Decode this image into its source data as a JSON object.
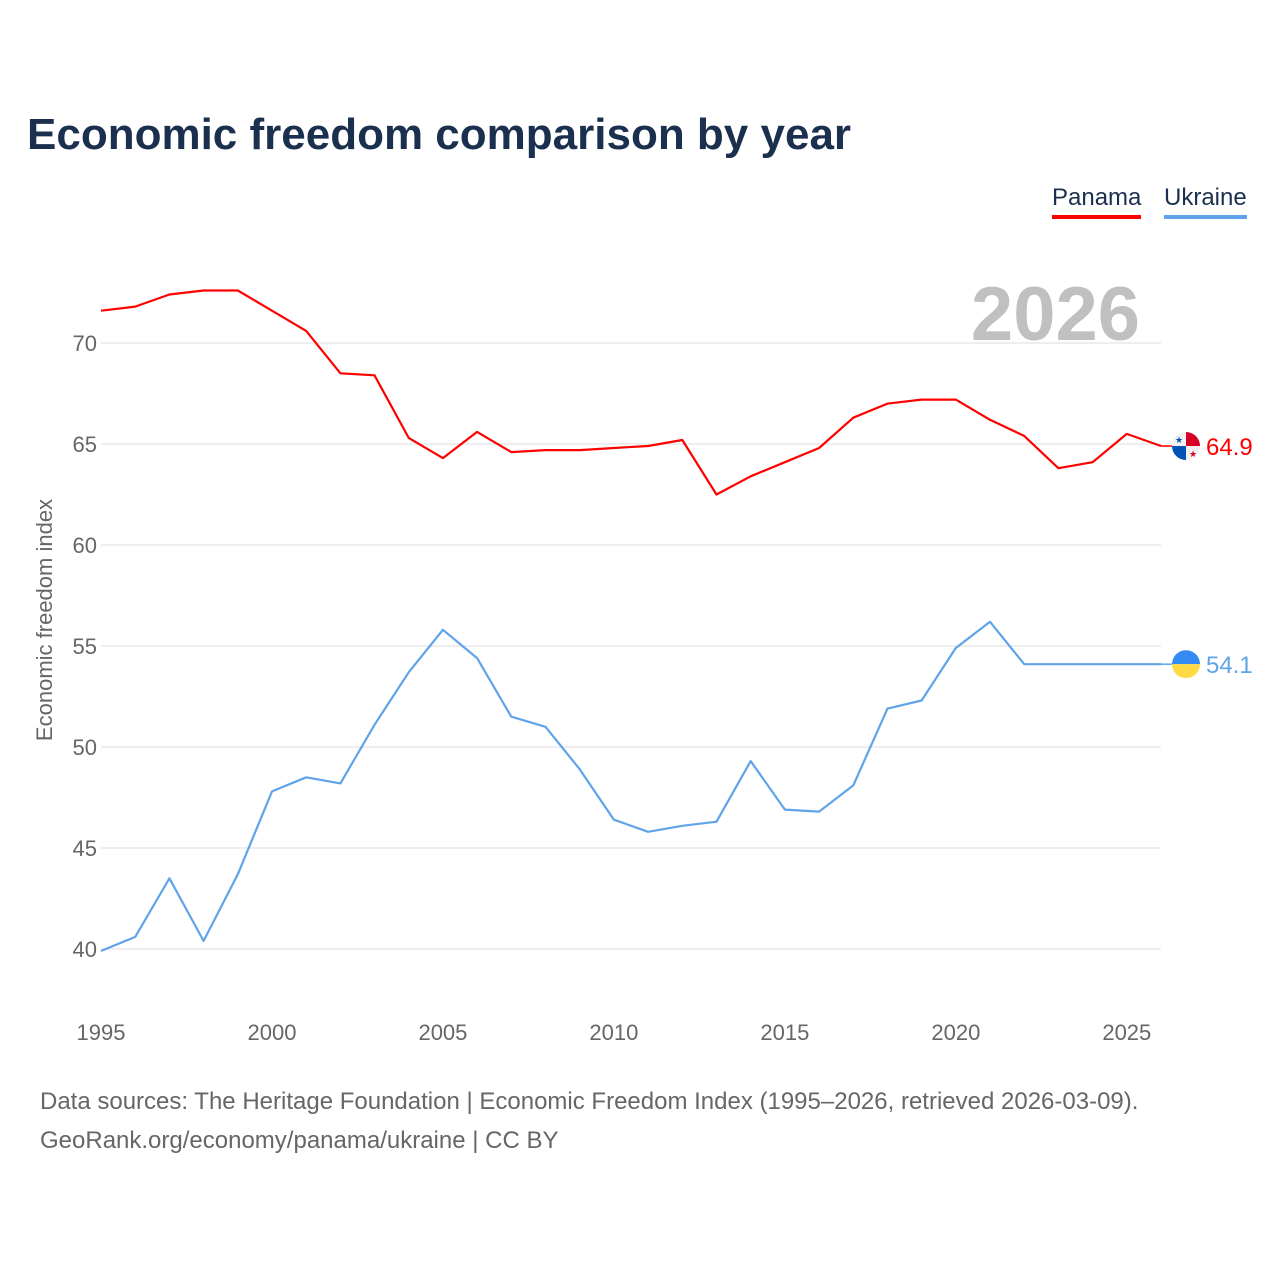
{
  "chart_data": {
    "type": "line",
    "title": "Economic freedom comparison by year",
    "xlabel": "",
    "ylabel": "Economic freedom index",
    "xlim": [
      1995,
      2026
    ],
    "ylim": [
      37,
      74
    ],
    "yticks": [
      40,
      45,
      50,
      55,
      60,
      65,
      70
    ],
    "xticks": [
      1995,
      2000,
      2005,
      2010,
      2015,
      2020,
      2025
    ],
    "grid": true,
    "legend_position": "top-right",
    "year_watermark": "2026",
    "x": [
      1995,
      1996,
      1997,
      1998,
      1999,
      2000,
      2001,
      2002,
      2003,
      2004,
      2005,
      2006,
      2007,
      2008,
      2009,
      2010,
      2011,
      2012,
      2013,
      2014,
      2015,
      2016,
      2017,
      2018,
      2019,
      2020,
      2021,
      2022,
      2023,
      2024,
      2025,
      2026
    ],
    "series": [
      {
        "name": "Panama",
        "color": "#ff0000",
        "end_label": "64.9",
        "values": [
          71.6,
          71.8,
          72.4,
          72.6,
          72.6,
          71.6,
          70.6,
          68.5,
          68.4,
          65.3,
          64.3,
          65.6,
          64.6,
          64.7,
          64.7,
          64.8,
          64.9,
          65.2,
          62.5,
          63.4,
          64.1,
          64.8,
          66.3,
          67.0,
          67.2,
          67.2,
          66.2,
          65.4,
          63.8,
          64.1,
          65.5,
          64.9
        ]
      },
      {
        "name": "Ukraine",
        "color": "#5fa4e8",
        "end_label": "54.1",
        "values": [
          39.9,
          40.6,
          43.5,
          40.4,
          43.7,
          47.8,
          48.5,
          48.2,
          51.1,
          53.7,
          55.8,
          54.4,
          51.5,
          51.0,
          48.9,
          46.4,
          45.8,
          46.1,
          46.3,
          49.3,
          46.9,
          46.8,
          48.1,
          51.9,
          52.3,
          54.9,
          56.2,
          54.1,
          54.1,
          54.1,
          54.1,
          54.1
        ]
      }
    ]
  },
  "footer": {
    "line1": "Data sources: The Heritage Foundation | Economic Freedom Index (1995–2026, retrieved 2026-03-09).",
    "line2": "GeoRank.org/economy/panama/ukraine | CC BY"
  }
}
